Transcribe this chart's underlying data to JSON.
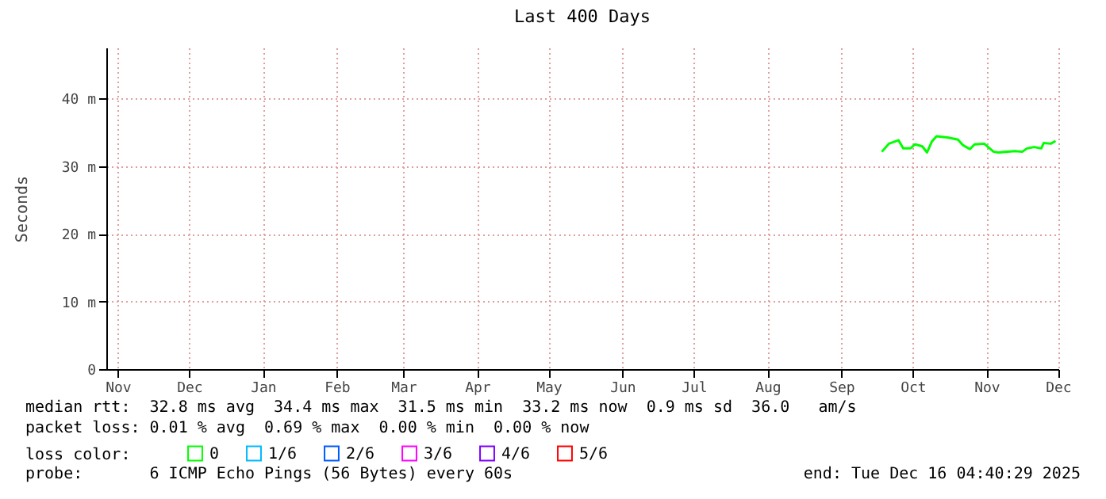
{
  "chart_data": {
    "type": "line",
    "title": "Last 400 Days",
    "ylabel": "Seconds",
    "legend_title": "loss color:",
    "legend": "bottom",
    "grid": true,
    "x": [
      "2025-10-03",
      "2025-10-06",
      "2025-10-10",
      "2025-10-12",
      "2025-10-15",
      "2025-10-17",
      "2025-10-20",
      "2025-10-22",
      "2025-10-24",
      "2025-10-26",
      "2025-10-31",
      "2025-11-04",
      "2025-11-06",
      "2025-11-09",
      "2025-11-11",
      "2025-11-15",
      "2025-11-19",
      "2025-11-21",
      "2025-11-28",
      "2025-12-01",
      "2025-12-03",
      "2025-12-06",
      "2025-12-09",
      "2025-12-10",
      "2025-12-13",
      "2025-12-15"
    ],
    "xlim": [
      "2024-11-11T04:40",
      "2025-12-16T04:40"
    ],
    "xticks": [
      {
        "value": "2024-11-16",
        "label": "Nov"
      },
      {
        "value": "2024-12-16",
        "label": "Dec"
      },
      {
        "value": "2025-01-16",
        "label": "Jan"
      },
      {
        "value": "2025-02-16",
        "label": "Feb"
      },
      {
        "value": "2025-03-16",
        "label": "Mar"
      },
      {
        "value": "2025-04-16",
        "label": "Apr"
      },
      {
        "value": "2025-05-16",
        "label": "May"
      },
      {
        "value": "2025-06-16",
        "label": "Jun"
      },
      {
        "value": "2025-07-16",
        "label": "Jul"
      },
      {
        "value": "2025-08-16",
        "label": "Aug"
      },
      {
        "value": "2025-09-16",
        "label": "Sep"
      },
      {
        "value": "2025-10-16",
        "label": "Oct"
      },
      {
        "value": "2025-11-16",
        "label": "Nov"
      },
      {
        "value": "2025-12-16",
        "label": "Dec"
      }
    ],
    "ylim": [
      0,
      47.5
    ],
    "yticks": [
      0,
      {
        "value": 10,
        "label": "10 m"
      },
      {
        "value": 20,
        "label": "20 m"
      },
      {
        "value": 30,
        "label": "30 m"
      },
      {
        "value": 40,
        "label": "40 m"
      }
    ],
    "series": [
      {
        "name": "0",
        "color": "#00ff00",
        "values": [
          32.1,
          33.3,
          33.8,
          32.6,
          32.6,
          33.2,
          32.9,
          32.0,
          33.6,
          34.4,
          34.2,
          33.9,
          33.1,
          32.5,
          33.2,
          33.3,
          32.1,
          32.0,
          32.2,
          32.1,
          32.6,
          32.8,
          32.6,
          33.4,
          33.3,
          33.7
        ]
      },
      {
        "name": "1/6",
        "color": "#00b8ff",
        "values": [
          null,
          null,
          null,
          null,
          null,
          null,
          null,
          null,
          null,
          null,
          null,
          null,
          null,
          null,
          null,
          null,
          null,
          null,
          null,
          null,
          null,
          null,
          null,
          null,
          null,
          null
        ]
      },
      {
        "name": "2/6",
        "color": "#0059ff",
        "values": [
          null,
          null,
          null,
          null,
          null,
          null,
          null,
          null,
          null,
          null,
          null,
          null,
          null,
          null,
          null,
          null,
          null,
          null,
          null,
          null,
          null,
          null,
          null,
          null,
          null,
          null
        ]
      },
      {
        "name": "3/6",
        "color": "#ff00ff",
        "values": [
          null,
          null,
          null,
          null,
          null,
          null,
          null,
          null,
          null,
          null,
          null,
          null,
          null,
          null,
          null,
          null,
          null,
          null,
          null,
          null,
          null,
          null,
          null,
          null,
          null,
          null
        ]
      },
      {
        "name": "4/6",
        "color": "#7e00ff",
        "values": [
          null,
          null,
          null,
          null,
          null,
          null,
          null,
          null,
          null,
          null,
          null,
          null,
          null,
          null,
          null,
          null,
          null,
          null,
          null,
          null,
          null,
          null,
          null,
          null,
          null,
          null
        ]
      },
      {
        "name": "5/6",
        "color": "#ff0000",
        "values": [
          null,
          null,
          null,
          null,
          null,
          null,
          null,
          null,
          null,
          null,
          null,
          null,
          null,
          null,
          null,
          null,
          null,
          null,
          null,
          null,
          null,
          null,
          null,
          null,
          null,
          null
        ]
      }
    ],
    "annotations": [
      "median rtt:  32.8 ms avg  34.4 ms max  31.5 ms min  33.2 ms now  0.9 ms sd  36.0   am/s",
      "packet loss: 0.01 % avg  0.69 % max  0.00 % min  0.00 % now",
      "probe:       6 ICMP Echo Pings (56 Bytes) every 60s",
      "end: Tue Dec 16 04:40:29 2025"
    ]
  }
}
